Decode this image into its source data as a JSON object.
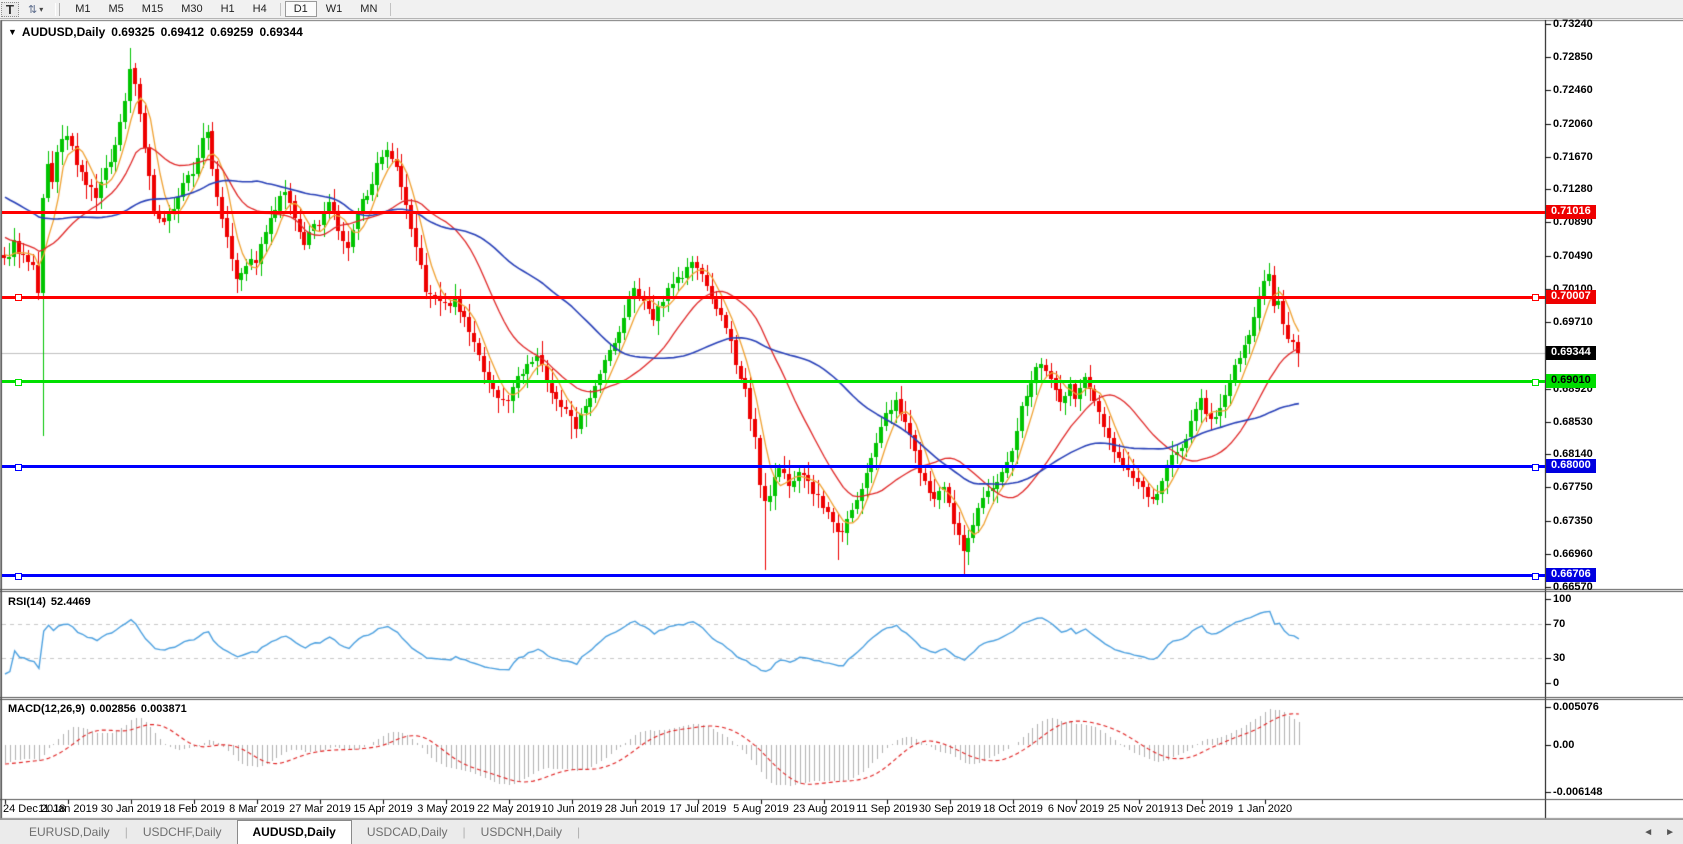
{
  "toolbar": {
    "text_tool_label": "T",
    "swap_icon_glyph": "⇅",
    "dropdown_caret": "▾",
    "timeframes": [
      "M1",
      "M5",
      "M15",
      "M30",
      "H1",
      "H4",
      "D1",
      "W1",
      "MN"
    ],
    "active_timeframe": "D1"
  },
  "chart": {
    "title": {
      "dropdown_glyph": "▼",
      "symbol": "AUDUSD,Daily",
      "open": "0.69325",
      "high": "0.69412",
      "low": "0.69259",
      "close": "0.69344"
    }
  },
  "rsi": {
    "label": "RSI(14)",
    "value": "52.4469"
  },
  "macd": {
    "label": "MACD(12,26,9)",
    "value_main": "0.002856",
    "value_signal": "0.003871"
  },
  "tabs": {
    "items": [
      "EURUSD,Daily",
      "USDCHF,Daily",
      "AUDUSD,Daily",
      "USDCAD,Daily",
      "USDCNH,Daily"
    ],
    "active": "AUDUSD,Daily",
    "separator": "|",
    "nav_left": "◄",
    "nav_right": "►"
  },
  "colors": {
    "candle_up": "#00c400",
    "candle_down": "#ee0000",
    "ma_fast": "#f0a232",
    "ma_mid": "#e02828",
    "ma_slow": "#2840b8",
    "rsi_line": "#4da1e0",
    "macd_hist": "#b2b2b2",
    "macd_signal": "#e02020",
    "level_dash": "#c8c8c8",
    "current_price_line": "#c0c0c0",
    "axis_text": "#000000"
  },
  "chart_data": {
    "type": "candlestick",
    "symbol": "AUDUSD",
    "timeframe": "Daily",
    "title": "AUDUSD,Daily 0.69325 0.69412 0.69259 0.69344",
    "bars_count": 268,
    "price_axis_range": [
      0.6648,
      0.7331
    ],
    "price_ticks": [
      "0.73240",
      "0.72850",
      "0.72460",
      "0.72060",
      "0.71670",
      "0.71280",
      "0.70890",
      "0.70490",
      "0.70100",
      "0.69710",
      "0.68920",
      "0.68530",
      "0.68140",
      "0.67750",
      "0.67350",
      "0.66960",
      "0.66570"
    ],
    "price_badges": [
      {
        "text": "0.71016",
        "value": 0.71016,
        "bg": "#ee0000",
        "fg": "#ffffff"
      },
      {
        "text": "0.70007",
        "value": 0.70007,
        "bg": "#ee0000",
        "fg": "#ffffff"
      },
      {
        "text": "0.69344",
        "value": 0.69344,
        "bg": "#000000",
        "fg": "#ffffff"
      },
      {
        "text": "0.69010",
        "value": 0.6901,
        "bg": "#00dd00",
        "fg": "#000000"
      },
      {
        "text": "0.68000",
        "value": 0.68,
        "bg": "#0000e0",
        "fg": "#ffffff"
      },
      {
        "text": "0.66706",
        "value": 0.66706,
        "bg": "#0000e0",
        "fg": "#ffffff"
      }
    ],
    "horizontal_lines": [
      {
        "price": 0.71016,
        "color": "#ff0000",
        "width": 3,
        "squares": false
      },
      {
        "price": 0.70007,
        "color": "#ff0000",
        "width": 3,
        "squares": true
      },
      {
        "price": 0.6901,
        "color": "#00e000",
        "width": 3,
        "squares": true
      },
      {
        "price": 0.68,
        "color": "#0000ff",
        "width": 3,
        "squares": true
      },
      {
        "price": 0.66706,
        "color": "#0000ff",
        "width": 3,
        "squares": true
      }
    ],
    "current_price_line": {
      "price": 0.69344,
      "color": "#c0c0c0"
    },
    "date_ticks": [
      {
        "label": "24 Dec 2018",
        "bar": 0
      },
      {
        "label": "11 Jan 2019",
        "bar": 13
      },
      {
        "label": "30 Jan 2019",
        "bar": 26
      },
      {
        "label": "18 Feb 2019",
        "bar": 39
      },
      {
        "label": "8 Mar 2019",
        "bar": 52
      },
      {
        "label": "27 Mar 2019",
        "bar": 65
      },
      {
        "label": "15 Apr 2019",
        "bar": 78
      },
      {
        "label": "3 May 2019",
        "bar": 91
      },
      {
        "label": "22 May 2019",
        "bar": 104
      },
      {
        "label": "10 Jun 2019",
        "bar": 117
      },
      {
        "label": "28 Jun 2019",
        "bar": 130
      },
      {
        "label": "17 Jul 2019",
        "bar": 143
      },
      {
        "label": "5 Aug 2019",
        "bar": 156
      },
      {
        "label": "23 Aug 2019",
        "bar": 169
      },
      {
        "label": "11 Sep 2019",
        "bar": 182
      },
      {
        "label": "30 Sep 2019",
        "bar": 195
      },
      {
        "label": "18 Oct 2019",
        "bar": 208
      },
      {
        "label": "6 Nov 2019",
        "bar": 221
      },
      {
        "label": "25 Nov 2019",
        "bar": 234
      },
      {
        "label": "13 Dec 2019",
        "bar": 247
      },
      {
        "label": "1 Jan 2020",
        "bar": 260
      }
    ],
    "pre_anchors": [
      [
        -60,
        0.727
      ],
      [
        -45,
        0.721
      ],
      [
        -30,
        0.715
      ],
      [
        -15,
        0.7085
      ],
      [
        -1,
        0.7045
      ]
    ],
    "bar_anchors": [
      [
        0,
        0.7042
      ],
      [
        2,
        0.7065
      ],
      [
        4,
        0.7048
      ],
      [
        6,
        0.7033
      ],
      [
        7,
        0.7003
      ],
      [
        8,
        0.7113
      ],
      [
        9,
        0.7155
      ],
      [
        10,
        0.714
      ],
      [
        11,
        0.717
      ],
      [
        13,
        0.7195
      ],
      [
        15,
        0.7155
      ],
      [
        17,
        0.7135
      ],
      [
        19,
        0.712
      ],
      [
        21,
        0.715
      ],
      [
        23,
        0.718
      ],
      [
        25,
        0.7235
      ],
      [
        26,
        0.727
      ],
      [
        27,
        0.7255
      ],
      [
        29,
        0.718
      ],
      [
        31,
        0.71
      ],
      [
        33,
        0.7085
      ],
      [
        35,
        0.711
      ],
      [
        37,
        0.7135
      ],
      [
        39,
        0.715
      ],
      [
        41,
        0.7185
      ],
      [
        42,
        0.7195
      ],
      [
        44,
        0.712
      ],
      [
        46,
        0.7075
      ],
      [
        48,
        0.7025
      ],
      [
        50,
        0.704
      ],
      [
        52,
        0.7045
      ],
      [
        54,
        0.7075
      ],
      [
        56,
        0.7105
      ],
      [
        58,
        0.7125
      ],
      [
        60,
        0.709
      ],
      [
        62,
        0.7065
      ],
      [
        65,
        0.709
      ],
      [
        67,
        0.7115
      ],
      [
        69,
        0.708
      ],
      [
        71,
        0.7055
      ],
      [
        73,
        0.71
      ],
      [
        75,
        0.7125
      ],
      [
        77,
        0.7155
      ],
      [
        79,
        0.717
      ],
      [
        81,
        0.715
      ],
      [
        83,
        0.7105
      ],
      [
        85,
        0.706
      ],
      [
        87,
        0.701
      ],
      [
        89,
        0.7
      ],
      [
        91,
        0.699
      ],
      [
        93,
        0.7
      ],
      [
        95,
        0.6975
      ],
      [
        97,
        0.6945
      ],
      [
        99,
        0.6915
      ],
      [
        101,
        0.689
      ],
      [
        103,
        0.6875
      ],
      [
        104,
        0.6882
      ],
      [
        106,
        0.6905
      ],
      [
        108,
        0.6925
      ],
      [
        110,
        0.693
      ],
      [
        112,
        0.69
      ],
      [
        114,
        0.688
      ],
      [
        116,
        0.6865
      ],
      [
        118,
        0.6845
      ],
      [
        120,
        0.687
      ],
      [
        122,
        0.69
      ],
      [
        124,
        0.6925
      ],
      [
        126,
        0.6945
      ],
      [
        128,
        0.6975
      ],
      [
        130,
        0.7015
      ],
      [
        132,
        0.699
      ],
      [
        134,
        0.6975
      ],
      [
        136,
        0.7
      ],
      [
        138,
        0.702
      ],
      [
        140,
        0.7025
      ],
      [
        142,
        0.7042
      ],
      [
        143,
        0.7035
      ],
      [
        145,
        0.701
      ],
      [
        147,
        0.699
      ],
      [
        149,
        0.696
      ],
      [
        151,
        0.6925
      ],
      [
        153,
        0.689
      ],
      [
        155,
        0.683
      ],
      [
        156,
        0.6775
      ],
      [
        157,
        0.6755
      ],
      [
        158,
        0.677
      ],
      [
        160,
        0.6795
      ],
      [
        162,
        0.678
      ],
      [
        164,
        0.6795
      ],
      [
        166,
        0.678
      ],
      [
        168,
        0.676
      ],
      [
        170,
        0.6745
      ],
      [
        172,
        0.672
      ],
      [
        174,
        0.6735
      ],
      [
        176,
        0.676
      ],
      [
        178,
        0.679
      ],
      [
        180,
        0.6825
      ],
      [
        182,
        0.686
      ],
      [
        184,
        0.688
      ],
      [
        186,
        0.6855
      ],
      [
        188,
        0.6815
      ],
      [
        190,
        0.678
      ],
      [
        192,
        0.676
      ],
      [
        194,
        0.677
      ],
      [
        195,
        0.6752
      ],
      [
        197,
        0.6715
      ],
      [
        198,
        0.67
      ],
      [
        200,
        0.6735
      ],
      [
        202,
        0.6765
      ],
      [
        204,
        0.677
      ],
      [
        206,
        0.679
      ],
      [
        208,
        0.682
      ],
      [
        210,
        0.687
      ],
      [
        212,
        0.69
      ],
      [
        214,
        0.6925
      ],
      [
        216,
        0.6905
      ],
      [
        218,
        0.688
      ],
      [
        220,
        0.6895
      ],
      [
        221,
        0.688
      ],
      [
        223,
        0.6905
      ],
      [
        225,
        0.6875
      ],
      [
        227,
        0.685
      ],
      [
        229,
        0.682
      ],
      [
        231,
        0.68
      ],
      [
        233,
        0.6785
      ],
      [
        235,
        0.677
      ],
      [
        237,
        0.6757
      ],
      [
        239,
        0.6785
      ],
      [
        241,
        0.681
      ],
      [
        243,
        0.6825
      ],
      [
        245,
        0.685
      ],
      [
        247,
        0.688
      ],
      [
        249,
        0.6855
      ],
      [
        251,
        0.687
      ],
      [
        253,
        0.69
      ],
      [
        255,
        0.693
      ],
      [
        257,
        0.696
      ],
      [
        259,
        0.7
      ],
      [
        260,
        0.7022
      ],
      [
        261,
        0.703
      ],
      [
        262,
        0.6985
      ],
      [
        263,
        0.6995
      ],
      [
        264,
        0.6965
      ],
      [
        265,
        0.695
      ],
      [
        266,
        0.6945
      ],
      [
        267,
        0.69344
      ]
    ],
    "special_wicks": [
      {
        "bar": 8,
        "low": 0.6836
      },
      {
        "bar": 26,
        "high": 0.7295
      },
      {
        "bar": 117,
        "low": 0.6832
      },
      {
        "bar": 157,
        "low": 0.6677
      },
      {
        "bar": 172,
        "low": 0.6689
      },
      {
        "bar": 198,
        "low": 0.6671
      },
      {
        "bar": 261,
        "high": 0.7041
      }
    ],
    "noise_seed": 9,
    "noise_amp": 0.0011,
    "moving_averages": [
      {
        "period": 5,
        "color": "#f0a232",
        "width": 1.3
      },
      {
        "period": 20,
        "color": "#e02828",
        "width": 1.3
      },
      {
        "period": 45,
        "color": "#2840b8",
        "width": 1.6
      }
    ],
    "rsi": {
      "period": 14,
      "current": 52.4469,
      "range": [
        0,
        100
      ],
      "levels": [
        70,
        30
      ],
      "ticks": [
        {
          "text": "100",
          "value": 100
        },
        {
          "text": "70",
          "value": 70
        },
        {
          "text": "30",
          "value": 30
        },
        {
          "text": "0",
          "value": 0
        }
      ]
    },
    "macd": {
      "fast": 12,
      "slow": 26,
      "signal": 9,
      "range": [
        -0.006148,
        0.005076
      ],
      "ticks": [
        {
          "text": "0.005076",
          "value": 0.005076
        },
        {
          "text": "0.00",
          "value": 0.0
        },
        {
          "text": "-0.006148",
          "value": -0.006148
        }
      ]
    }
  }
}
